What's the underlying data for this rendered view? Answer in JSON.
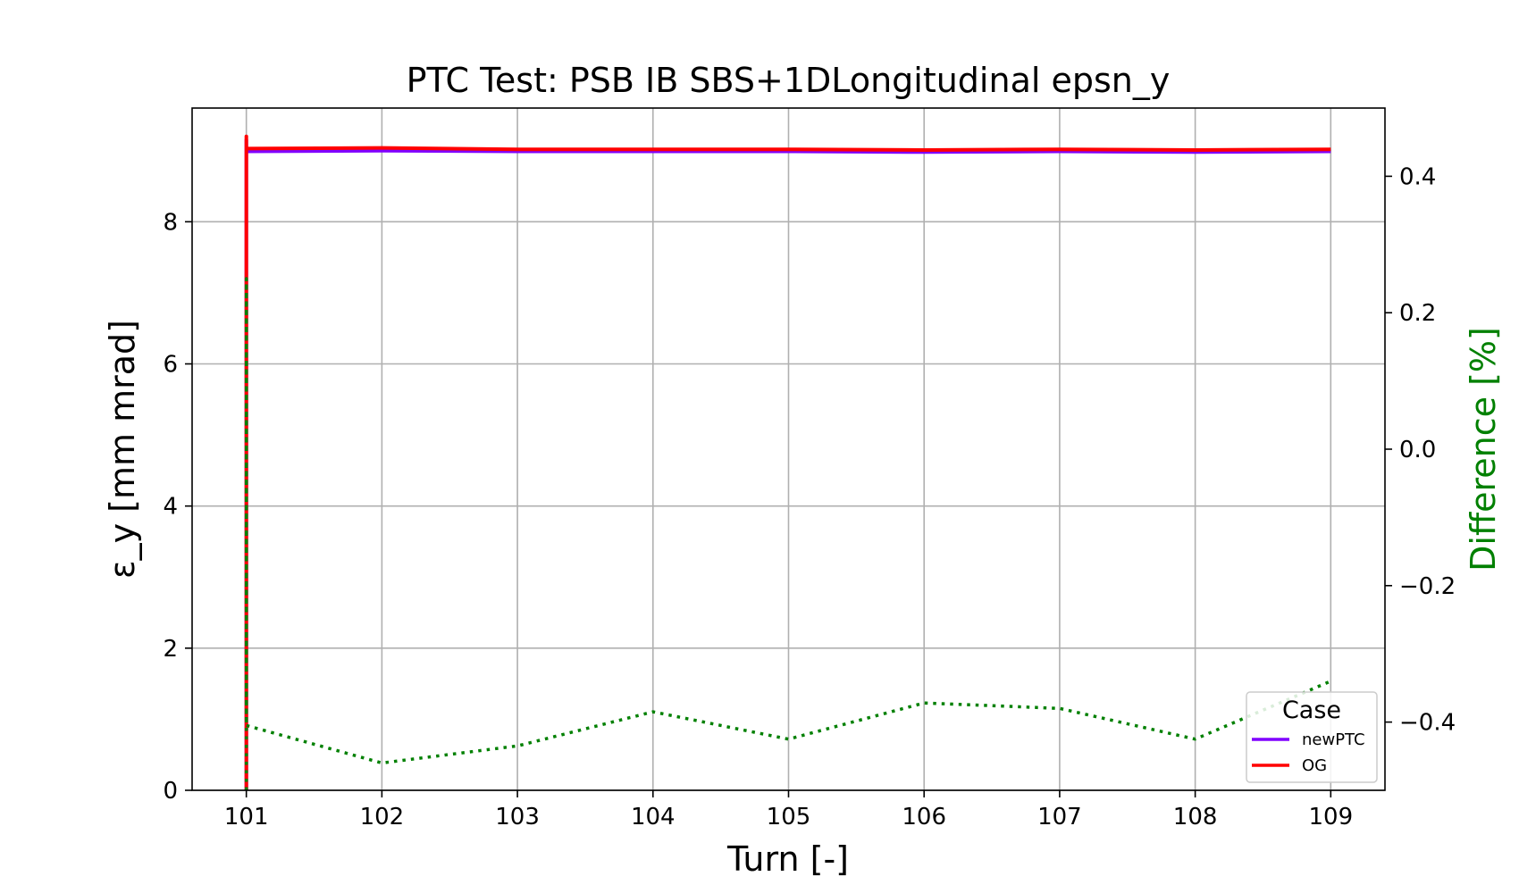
{
  "chart_data": {
    "type": "line",
    "title": "PTC Test: PSB IB SBS+1DLongitudinal epsn_y",
    "xlabel": "Turn [-]",
    "ylabel": "ε_y [mm mrad]",
    "ylabel2": "Difference [%]",
    "xlim": [
      100.6,
      109.4
    ],
    "ylim": [
      0,
      9.6
    ],
    "ylim2": [
      -0.5,
      0.5
    ],
    "xticks": [
      "101",
      "102",
      "103",
      "104",
      "105",
      "106",
      "107",
      "108",
      "109"
    ],
    "yticks": [
      "0",
      "2",
      "4",
      "6",
      "8"
    ],
    "yticks2": [
      "−0.4",
      "−0.2",
      "0.0",
      "0.2",
      "0.4"
    ],
    "grid": true,
    "legend": {
      "title": "Case",
      "placement": "lower-right"
    },
    "series": [
      {
        "name": "newPTC",
        "axis": "left",
        "color": "#8000ff",
        "style": "solid",
        "x": [
          101,
          101,
          101,
          102,
          103,
          104,
          105,
          106,
          107,
          108,
          109
        ],
        "y": [
          0,
          9.15,
          8.99,
          9.0,
          8.99,
          8.99,
          8.99,
          8.98,
          8.99,
          8.98,
          8.99
        ]
      },
      {
        "name": "OG",
        "axis": "left",
        "color": "#ff0000",
        "style": "solid",
        "x": [
          101,
          101,
          101,
          102,
          103,
          104,
          105,
          106,
          107,
          108,
          109
        ],
        "y": [
          0,
          9.2,
          9.03,
          9.04,
          9.02,
          9.02,
          9.02,
          9.01,
          9.02,
          9.01,
          9.02
        ]
      },
      {
        "name": "",
        "axis": "right",
        "color": "#008000",
        "style": "dotted",
        "x": [
          101,
          101,
          101,
          102,
          103,
          104,
          105,
          106,
          107,
          108,
          109
        ],
        "y": [
          -0.5,
          0.25,
          -0.405,
          -0.46,
          -0.435,
          -0.385,
          -0.425,
          -0.372,
          -0.38,
          -0.425,
          -0.34
        ]
      }
    ]
  }
}
